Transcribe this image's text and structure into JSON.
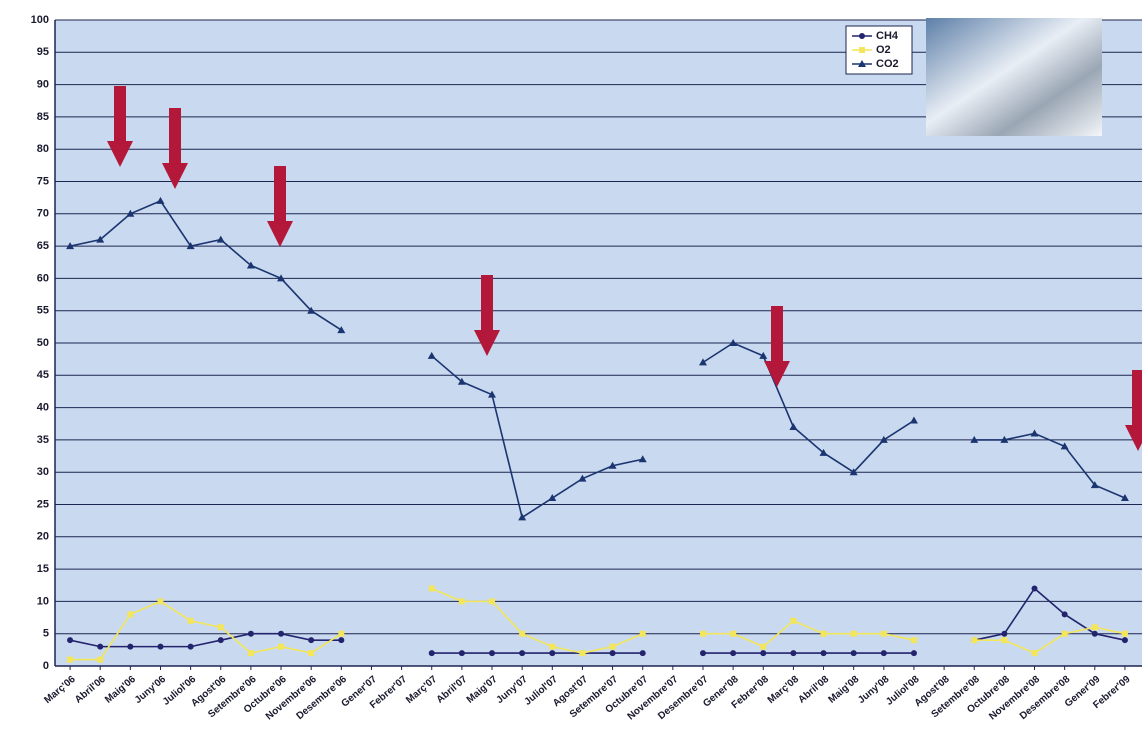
{
  "chart_data": {
    "type": "line",
    "categories": [
      "Març'06",
      "Abril'06",
      "Maig'06",
      "Juny'06",
      "Juliol'06",
      "Agost'06",
      "Setembre'06",
      "Octubre'06",
      "Novembre'06",
      "Desembre'06",
      "Gener'07",
      "Febrer'07",
      "Març'07",
      "Abril'07",
      "Maig'07",
      "Juny'07",
      "Juliol'07",
      "Agost'07",
      "Setembre'07",
      "Octubre'07",
      "Novembre'07",
      "Desembre'07",
      "Gener'08",
      "Febrer'08",
      "Març'08",
      "Abril'08",
      "Maig'08",
      "Juny'08",
      "Juliol'08",
      "Agost'08",
      "Setembre'08",
      "Octubre'08",
      "Novembre'08",
      "Desembre'08",
      "Gener'09",
      "Febrer'09"
    ],
    "series": [
      {
        "name": "CH4",
        "color": "#23236e",
        "marker": "circle",
        "values": [
          4,
          3,
          3,
          3,
          3,
          4,
          5,
          5,
          4,
          4,
          null,
          null,
          2,
          2,
          2,
          2,
          2,
          2,
          2,
          2,
          null,
          2,
          2,
          2,
          2,
          2,
          2,
          2,
          2,
          null,
          4,
          5,
          12,
          8,
          5,
          4
        ]
      },
      {
        "name": "O2",
        "color": "#f3e65a",
        "marker": "square",
        "values": [
          1,
          1,
          8,
          10,
          7,
          6,
          2,
          3,
          2,
          5,
          null,
          null,
          12,
          10,
          10,
          5,
          3,
          2,
          3,
          5,
          null,
          5,
          5,
          3,
          7,
          5,
          5,
          5,
          4,
          null,
          4,
          4,
          2,
          5,
          6,
          5
        ]
      },
      {
        "name": "CO2",
        "color": "#1b3570",
        "marker": "triangle",
        "values": [
          65,
          66,
          70,
          72,
          65,
          66,
          62,
          60,
          55,
          52,
          null,
          null,
          48,
          44,
          42,
          23,
          26,
          29,
          31,
          32,
          null,
          47,
          50,
          48,
          37,
          33,
          30,
          35,
          38,
          null,
          35,
          35,
          36,
          34,
          28,
          26
        ]
      }
    ],
    "ylim": [
      0,
      100
    ],
    "yticks": [
      0,
      5,
      10,
      15,
      20,
      25,
      30,
      35,
      40,
      45,
      50,
      55,
      60,
      65,
      70,
      75,
      80,
      85,
      90,
      95,
      100
    ],
    "grid": true,
    "legend": "top-right"
  }
}
